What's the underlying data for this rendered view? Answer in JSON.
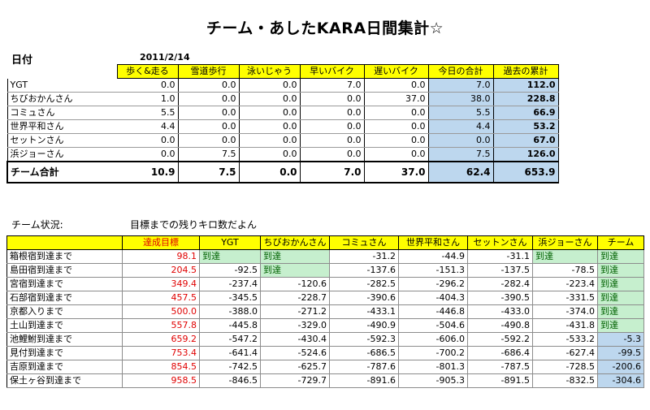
{
  "title": "チーム・あしたKARA日間集計☆",
  "date_label": "日付",
  "date_value": "2011/2/14",
  "top_table": {
    "headers": [
      "歩く&走る",
      "雪道歩行",
      "泳いじゃう",
      "早いバイク",
      "遅いバイク",
      "今日の合計",
      "過去の累計"
    ],
    "rows": [
      {
        "name": "YGT",
        "values": [
          "0.0",
          "0.0",
          "0.0",
          "7.0",
          "0.0",
          "7.0",
          "112.0"
        ]
      },
      {
        "name": "ちびおかんさん",
        "values": [
          "1.0",
          "0.0",
          "0.0",
          "0.0",
          "37.0",
          "38.0",
          "228.8"
        ]
      },
      {
        "name": "コミュさん",
        "values": [
          "5.5",
          "0.0",
          "0.0",
          "0.0",
          "0.0",
          "5.5",
          "66.9"
        ]
      },
      {
        "name": "世界平和さん",
        "values": [
          "4.4",
          "0.0",
          "0.0",
          "0.0",
          "0.0",
          "4.4",
          "53.2"
        ]
      },
      {
        "name": "セットンさん",
        "values": [
          "0.0",
          "0.0",
          "0.0",
          "0.0",
          "0.0",
          "0.0",
          "67.0"
        ]
      },
      {
        "name": "浜ジョーさん",
        "values": [
          "0.0",
          "7.5",
          "0.0",
          "0.0",
          "0.0",
          "7.5",
          "126.0"
        ]
      }
    ],
    "total": {
      "name": "チーム合計",
      "values": [
        "10.9",
        "7.5",
        "0.0",
        "7.0",
        "37.0",
        "62.4",
        "653.9"
      ]
    }
  },
  "status_label": "チーム状況:",
  "status_note": "目標までの残りキロ数だよん",
  "bottom_table": {
    "headers": [
      "達成目標",
      "YGT",
      "ちびおかんさん",
      "コミュさん",
      "世界平和さん",
      "セットンさん",
      "浜ジョーさん",
      "チーム"
    ],
    "rows": [
      {
        "name": "箱根宿到達まで",
        "goal": "98.1",
        "cells": [
          "到達",
          "到達",
          "-31.2",
          "-44.9",
          "-31.1",
          "到達",
          "到達"
        ]
      },
      {
        "name": "島田宿到達まで",
        "goal": "204.5",
        "cells": [
          "-92.5",
          "到達",
          "-137.6",
          "-151.3",
          "-137.5",
          "-78.5",
          "到達"
        ]
      },
      {
        "name": "宮宿到達まで",
        "goal": "349.4",
        "cells": [
          "-237.4",
          "-120.6",
          "-282.5",
          "-296.2",
          "-282.4",
          "-223.4",
          "到達"
        ]
      },
      {
        "name": "石部宿到達まで",
        "goal": "457.5",
        "cells": [
          "-345.5",
          "-228.7",
          "-390.6",
          "-404.3",
          "-390.5",
          "-331.5",
          "到達"
        ]
      },
      {
        "name": "京都入りまで",
        "goal": "500.0",
        "cells": [
          "-388.0",
          "-271.2",
          "-433.1",
          "-446.8",
          "-433.0",
          "-374.0",
          "到達"
        ]
      },
      {
        "name": "土山到達まで",
        "goal": "557.8",
        "cells": [
          "-445.8",
          "-329.0",
          "-490.9",
          "-504.6",
          "-490.8",
          "-431.8",
          "到達"
        ]
      },
      {
        "name": "池鯉鮒到達まで",
        "goal": "659.2",
        "cells": [
          "-547.2",
          "-430.4",
          "-592.3",
          "-606.0",
          "-592.2",
          "-533.2",
          "-5.3"
        ]
      },
      {
        "name": "見付到達まで",
        "goal": "753.4",
        "cells": [
          "-641.4",
          "-524.6",
          "-686.5",
          "-700.2",
          "-686.4",
          "-627.4",
          "-99.5"
        ]
      },
      {
        "name": "吉原到達まで",
        "goal": "854.5",
        "cells": [
          "-742.5",
          "-625.7",
          "-787.6",
          "-801.3",
          "-787.5",
          "-728.5",
          "-200.6"
        ]
      },
      {
        "name": "保土ヶ谷到達まで",
        "goal": "958.5",
        "cells": [
          "-846.5",
          "-729.7",
          "-891.6",
          "-905.3",
          "-891.5",
          "-832.5",
          "-304.6"
        ]
      }
    ]
  },
  "colors": {
    "header_yellow": "#ffff00",
    "blue_cell": "#bdd7ee",
    "green_cell": "#c6efce",
    "goal_red": "#e00000"
  }
}
